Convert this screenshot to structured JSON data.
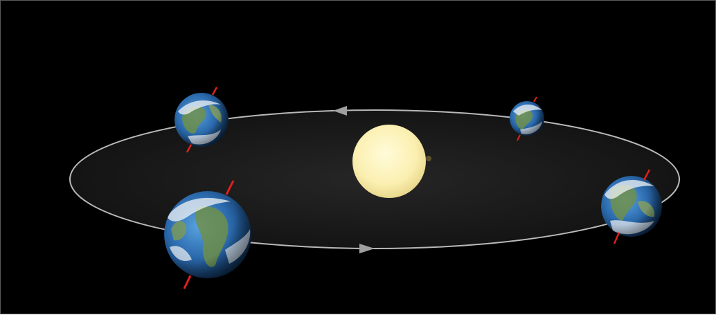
{
  "scene": {
    "description_free": true,
    "colors": {
      "background": "#000000",
      "border": "#5a5a5a",
      "orbit_line": "#b9b9b9",
      "orbit_fill": "#1a1a1a",
      "sun": "#fbf0b0",
      "axis": "#e0211b",
      "ocean": "#2c6fb3",
      "land": "#6f8f4a",
      "cloud": "#f2f4f6"
    },
    "icons": {
      "sun": "sun-icon",
      "planet": "earth-icon",
      "direction": "arrow-icon"
    },
    "earth_count": 4,
    "orbit_direction": "counter-clockwise"
  }
}
